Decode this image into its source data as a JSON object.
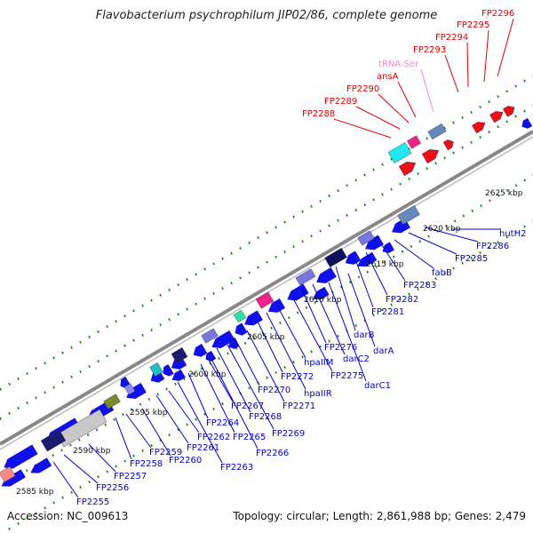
{
  "title": "Flavobacterium psychrophilum JIP02/86, complete genome",
  "footer": {
    "accession": "Accession: NC_009613",
    "summary": "Topology: circular; Length: 2,861,988 bp; Genes: 2,479"
  },
  "colors": {
    "forward_label": "#dd0000",
    "trna_label": "#ee88cc",
    "reverse_label": "#0000cc",
    "scale_text": "#111111",
    "tick": "#1a7a1a",
    "backbone": "#888888",
    "gene_blue": "#1010ee",
    "gene_red": "#ee1010"
  },
  "scale_labels": [
    "2585 kbp",
    "2590 kbp",
    "2595 kbp",
    "2600 kbp",
    "2605 kbp",
    "2610 kbp",
    "2615 kbp",
    "2620 kbp",
    "2625 kbp"
  ],
  "forward_labels": [
    "FP2288",
    "FP2289",
    "FP2290",
    "ansA",
    "tRNA-Ser",
    "FP2293",
    "FP2294",
    "FP2295",
    "FP2296"
  ],
  "reverse_labels": [
    "FP2255",
    "FP2256",
    "FP2257",
    "FP2258",
    "FP2259",
    "FP2260",
    "FP2261",
    "FP2262",
    "FP2263",
    "FP2264",
    "FP2265",
    "FP2266",
    "FP2267",
    "FP2268",
    "FP2269",
    "FP2270",
    "FP2271",
    "FP2272",
    "hpaIIR",
    "hpaIIM",
    "FP2275",
    "FP2276",
    "darC1",
    "darC2",
    "darA",
    "darB",
    "FP2281",
    "FP2282",
    "FP2283",
    "fabB",
    "FP2285",
    "FP2286",
    "hutH2"
  ]
}
